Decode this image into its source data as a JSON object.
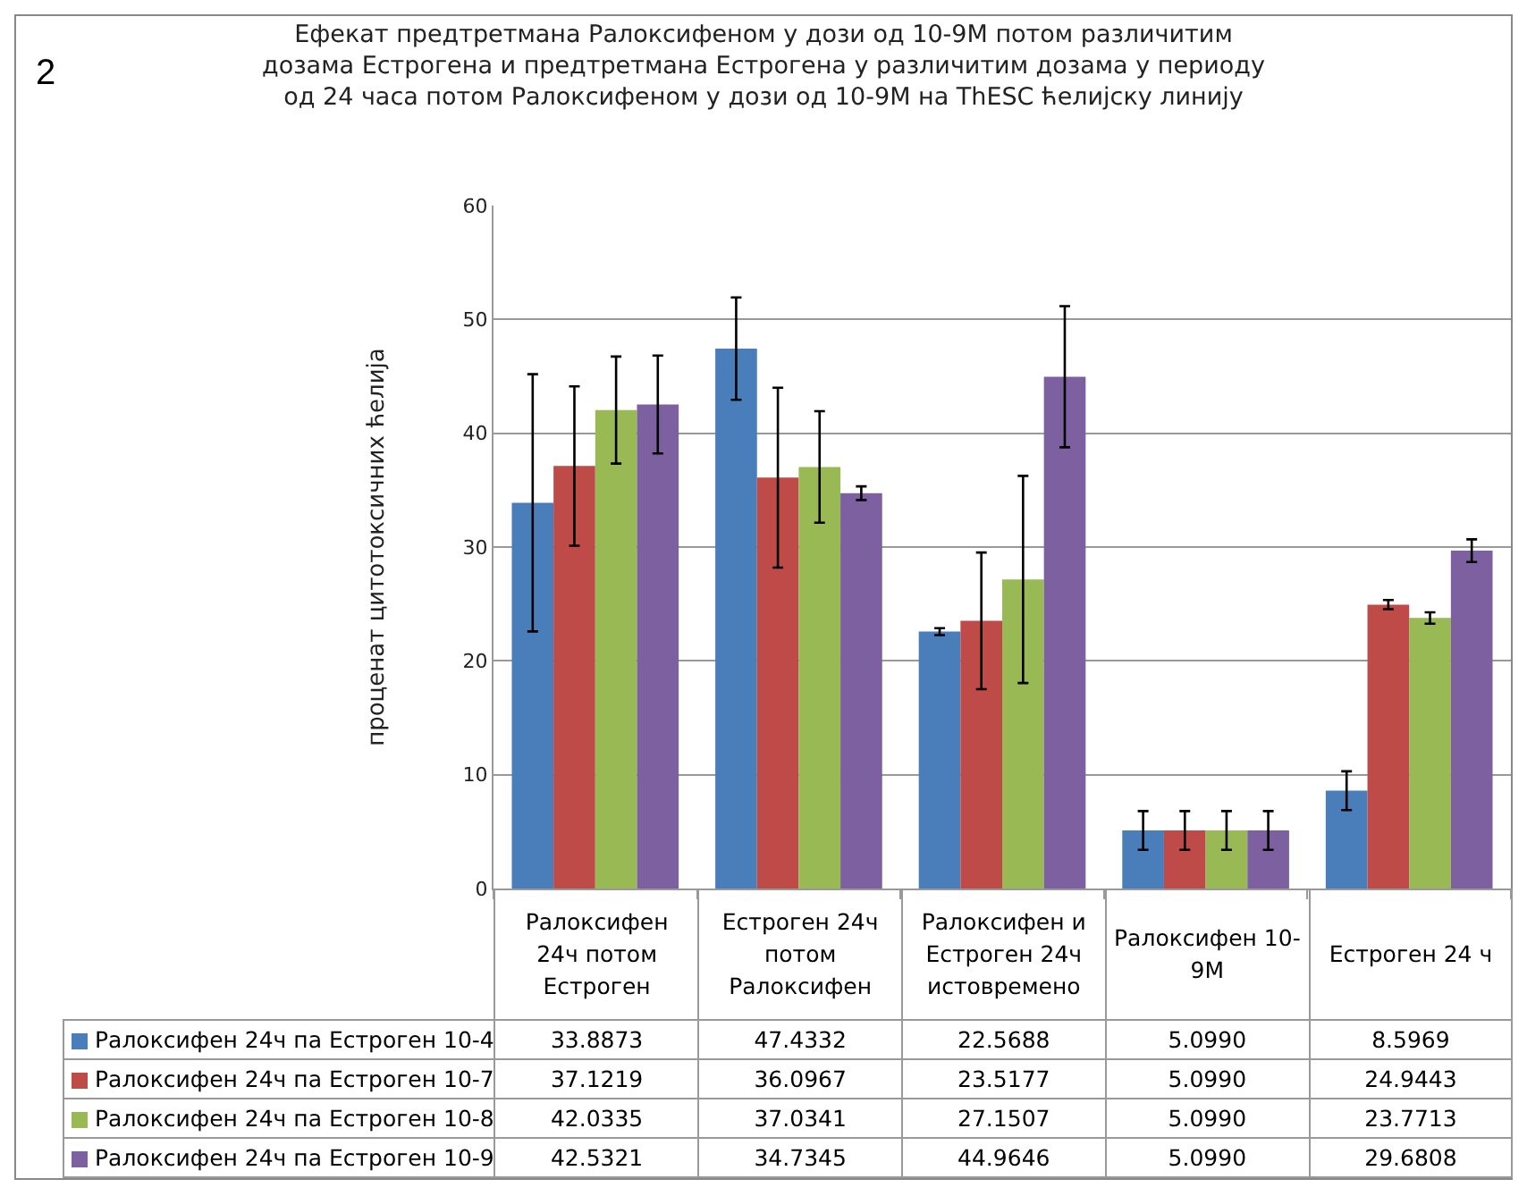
{
  "chart_data": {
    "type": "bar",
    "title": "Ефекат предтретмана Ралоксифеном у дози од 10-9М потом различитим\nдозама Естрогена и предтретмана Естрогена у различитим дозама у периоду\nод 24 часа потом Ралоксифеном у дози од 10-9М на ThESC ћелијску линију",
    "ylabel": "проценат цитотоксичних ћелија",
    "annotations": [
      "2"
    ],
    "categories": [
      "Ралоксифен\n24ч потом\nЕстроген",
      "Естроген 24ч\nпотом\nРалоксифен",
      "Ралоксифен и\nЕстроген 24ч\nистовремено",
      "Ралоксифен 10-\n9М",
      "Естроген 24 ч"
    ],
    "series": [
      {
        "name": "Ралоксифен 24ч па Естроген 10-4",
        "color": "#4a7ebb",
        "values": [
          33.8873,
          47.4332,
          22.5688,
          5.099,
          8.5969
        ],
        "value_labels": [
          "33.8873",
          "47.4332",
          "22.5688",
          "5.0990",
          "8.5969"
        ],
        "errors": [
          11.3,
          4.5,
          0.3,
          1.7,
          1.7
        ]
      },
      {
        "name": "Ралоксифен 24ч па Естроген 10-7",
        "color": "#be4b48",
        "values": [
          37.1219,
          36.0967,
          23.5177,
          5.099,
          24.9443
        ],
        "value_labels": [
          "37.1219",
          "36.0967",
          "23.5177",
          "5.0990",
          "24.9443"
        ],
        "errors": [
          7,
          7.9,
          6,
          1.7,
          0.4
        ]
      },
      {
        "name": "Ралоксифен 24ч па Естроген 10-8",
        "color": "#98b954",
        "values": [
          42.0335,
          37.0341,
          27.1507,
          5.099,
          23.7713
        ],
        "value_labels": [
          "42.0335",
          "37.0341",
          "27.1507",
          "5.0990",
          "23.7713"
        ],
        "errors": [
          4.7,
          4.9,
          9.1,
          1.7,
          0.5
        ]
      },
      {
        "name": "Ралоксифен 24ч па Естроген 10-9",
        "color": "#7d60a0",
        "values": [
          42.5321,
          34.7345,
          44.9646,
          5.099,
          29.6808
        ],
        "value_labels": [
          "42.5321",
          "34.7345",
          "44.9646",
          "5.0990",
          "29.6808"
        ],
        "errors": [
          4.3,
          0.6,
          6.2,
          1.7,
          1.0
        ]
      }
    ],
    "ylim": [
      0,
      60
    ],
    "yticks": [
      0,
      10,
      20,
      30,
      40,
      50,
      60
    ],
    "grid": "y",
    "legend": "bottom"
  }
}
